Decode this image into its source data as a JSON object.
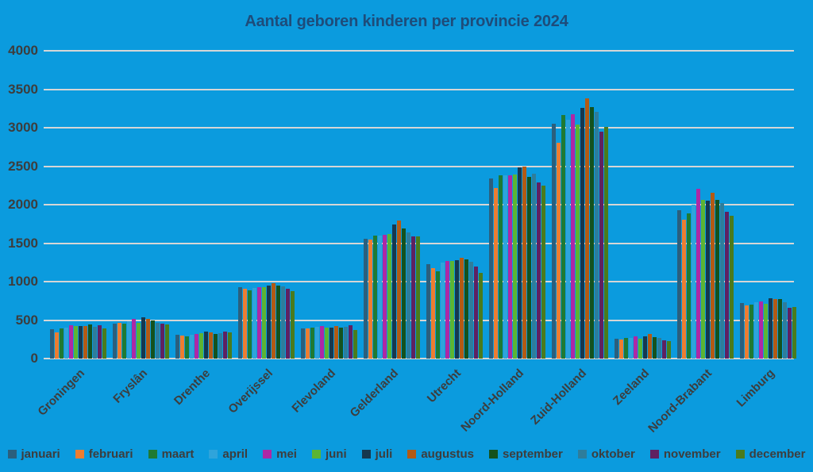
{
  "title": "Aantal geboren kinderen per provincie 2024",
  "colors": {
    "background": "#0B9BDE",
    "title_text": "#1E4C7A",
    "axis_text": "#3D3D3D",
    "gridline": "#D6D6D6"
  },
  "chart_data": {
    "type": "bar",
    "title": "Aantal geboren kinderen per provincie 2024",
    "xlabel": "",
    "ylabel": "",
    "ylim": [
      0,
      4000
    ],
    "ytick_step": 500,
    "yticks": [
      0,
      500,
      1000,
      1500,
      2000,
      2500,
      3000,
      3500,
      4000
    ],
    "grid": true,
    "legend_position": "bottom",
    "categories": [
      "Groningen",
      "Fryslân",
      "Drenthe",
      "Overijssel",
      "Flevoland",
      "Gelderland",
      "Utrecht",
      "Noord-Holland",
      "Zuid-Holland",
      "Zeeland",
      "Noord-Brabant",
      "Limburg"
    ],
    "series": [
      {
        "name": "januari",
        "color": "#2B5F7D",
        "values": [
          380,
          455,
          310,
          930,
          390,
          1560,
          1230,
          2340,
          3050,
          255,
          1925,
          720
        ]
      },
      {
        "name": "februari",
        "color": "#ED7D31",
        "values": [
          345,
          465,
          300,
          910,
          395,
          1550,
          1180,
          2215,
          2805,
          245,
          1805,
          690
        ]
      },
      {
        "name": "maart",
        "color": "#1F7A33",
        "values": [
          390,
          450,
          290,
          890,
          405,
          1600,
          1135,
          2380,
          3165,
          265,
          1885,
          705
        ]
      },
      {
        "name": "april",
        "color": "#2FA4DB",
        "values": [
          400,
          480,
          310,
          920,
          410,
          1600,
          1250,
          2380,
          3100,
          270,
          2000,
          730
        ]
      },
      {
        "name": "mei",
        "color": "#AE28A5",
        "values": [
          430,
          520,
          320,
          930,
          425,
          1610,
          1270,
          2380,
          3175,
          285,
          2205,
          740
        ]
      },
      {
        "name": "juni",
        "color": "#5CB433",
        "values": [
          425,
          465,
          330,
          930,
          405,
          1620,
          1270,
          2390,
          3040,
          255,
          2060,
          715
        ]
      },
      {
        "name": "juli",
        "color": "#16384F",
        "values": [
          420,
          540,
          355,
          950,
          405,
          1745,
          1280,
          2480,
          3260,
          285,
          2050,
          780
        ]
      },
      {
        "name": "augustus",
        "color": "#B35A14",
        "values": [
          425,
          515,
          340,
          980,
          425,
          1790,
          1310,
          2490,
          3385,
          315,
          2155,
          770
        ]
      },
      {
        "name": "september",
        "color": "#14521E",
        "values": [
          440,
          495,
          320,
          950,
          400,
          1695,
          1290,
          2360,
          3270,
          275,
          2060,
          770
        ]
      },
      {
        "name": "oktober",
        "color": "#2E7D9B",
        "values": [
          410,
          465,
          330,
          940,
          415,
          1640,
          1260,
          2400,
          3210,
          265,
          2020,
          730
        ]
      },
      {
        "name": "november",
        "color": "#5F2161",
        "values": [
          430,
          455,
          350,
          910,
          435,
          1590,
          1200,
          2290,
          2950,
          235,
          1905,
          655
        ]
      },
      {
        "name": "december",
        "color": "#4A7B1D",
        "values": [
          390,
          445,
          340,
          880,
          370,
          1590,
          1115,
          2250,
          3010,
          225,
          1855,
          665
        ]
      }
    ]
  }
}
